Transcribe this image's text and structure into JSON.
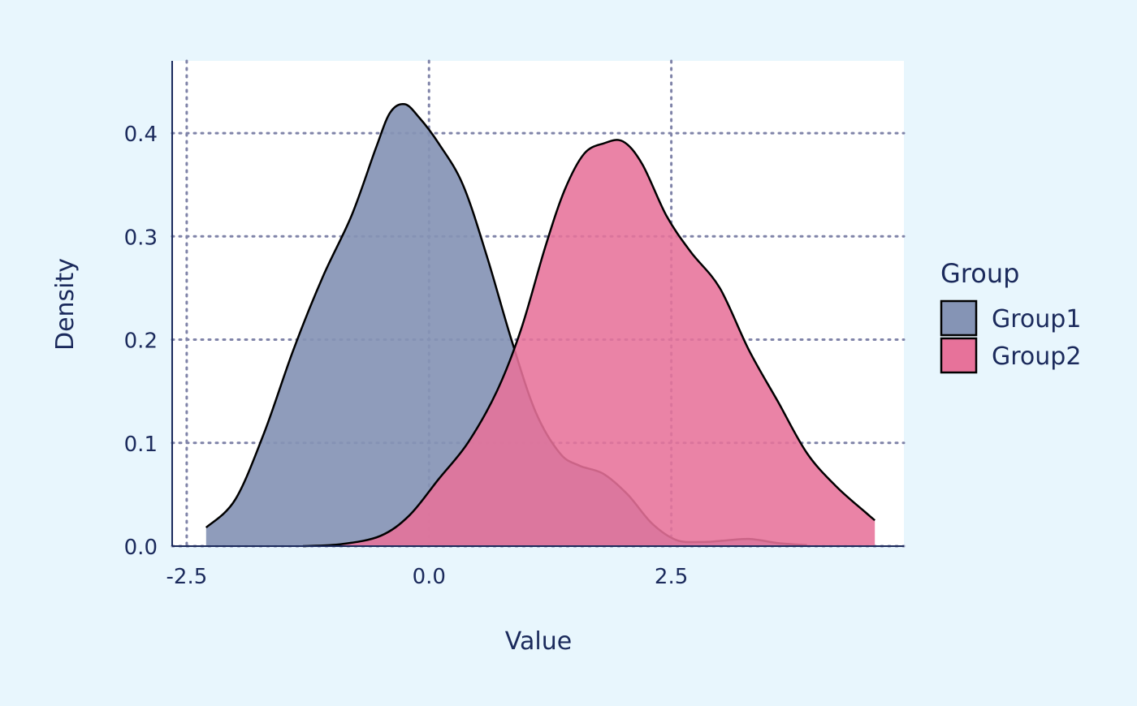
{
  "colors": {
    "background": "#e8f6fd",
    "panel": "#ffffff",
    "text": "#1b2a5c",
    "grid": "#7f83a8",
    "group1_fill": "#8594b5",
    "group2_fill": "#e7729a",
    "outline": "#000000"
  },
  "chart_data": {
    "type": "area",
    "subtype": "density",
    "xlabel": "Value",
    "ylabel": "Density",
    "xlim": [
      -2.65,
      4.9
    ],
    "ylim": [
      0,
      0.47
    ],
    "x_ticks": [
      -2.5,
      0.0,
      2.5
    ],
    "x_tick_labels": [
      "-2.5",
      "0.0",
      "2.5"
    ],
    "y_ticks": [
      0.0,
      0.1,
      0.2,
      0.3,
      0.4
    ],
    "y_tick_labels": [
      "0.0",
      "0.1",
      "0.2",
      "0.3",
      "0.4"
    ],
    "grid": "dotted, major",
    "legend": {
      "title": "Group",
      "position": "right"
    },
    "series": [
      {
        "name": "Group1",
        "color": "#8594b5",
        "x": [
          -2.3,
          -2.0,
          -1.7,
          -1.4,
          -1.1,
          -0.8,
          -0.55,
          -0.4,
          -0.25,
          -0.1,
          0.1,
          0.35,
          0.6,
          0.85,
          1.1,
          1.35,
          1.55,
          1.8,
          2.05,
          2.3,
          2.55,
          2.8,
          3.0,
          3.3,
          3.6,
          3.9
        ],
        "y": [
          0.018,
          0.045,
          0.11,
          0.19,
          0.26,
          0.32,
          0.385,
          0.42,
          0.428,
          0.415,
          0.39,
          0.35,
          0.28,
          0.2,
          0.13,
          0.09,
          0.078,
          0.07,
          0.05,
          0.022,
          0.006,
          0.004,
          0.005,
          0.007,
          0.003,
          0.001
        ]
      },
      {
        "name": "Group2",
        "color": "#e7729a",
        "x": [
          -1.3,
          -0.9,
          -0.5,
          -0.2,
          0.1,
          0.4,
          0.7,
          0.95,
          1.2,
          1.4,
          1.6,
          1.8,
          2.0,
          2.2,
          2.45,
          2.7,
          3.0,
          3.3,
          3.6,
          3.9,
          4.2,
          4.5,
          4.6
        ],
        "y": [
          0.0,
          0.002,
          0.01,
          0.03,
          0.065,
          0.1,
          0.15,
          0.21,
          0.29,
          0.345,
          0.38,
          0.39,
          0.392,
          0.37,
          0.32,
          0.285,
          0.25,
          0.19,
          0.14,
          0.09,
          0.058,
          0.033,
          0.025
        ]
      }
    ]
  }
}
